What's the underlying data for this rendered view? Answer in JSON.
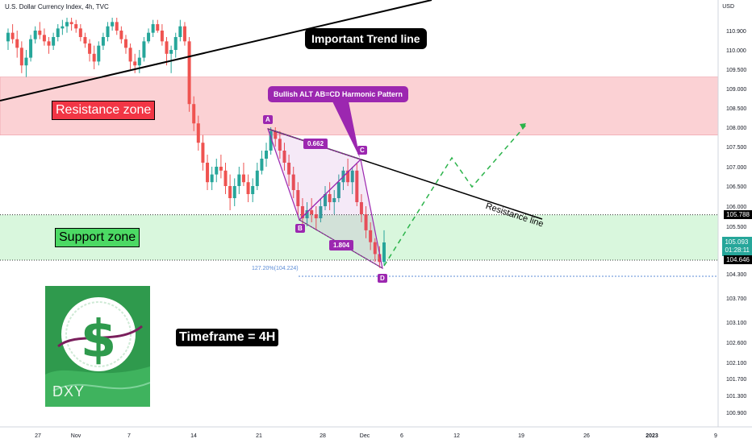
{
  "header": {
    "title": "U.S. Dollar Currency Index, 4h, TVC"
  },
  "price_axis": {
    "currency": "USD",
    "levels": [
      {
        "price": 105.788,
        "label": "105.788",
        "color": "#000000"
      },
      {
        "price": 105.093,
        "label": "105.093",
        "countdown": "01:28:11",
        "color": "#26a69a"
      },
      {
        "price": 104.646,
        "label": "104.646",
        "color": "#000000"
      }
    ]
  },
  "annotations": {
    "resistance_zone": "Resistance zone",
    "support_zone": "Support zone",
    "important_trend_line": "Important Trend line",
    "timeframe": "Timeframe = 4H",
    "pattern_callout": "Bullish ALT AB=CD Harmonic Pattern",
    "resistance_line": "Resistance line",
    "point_a": "A",
    "point_b": "B",
    "point_c": "C",
    "point_d": "D",
    "ratio_bc": "0.662",
    "ratio_cd": "1.804",
    "extension": "127.20%(104.224)"
  },
  "logo": {
    "text": "DXY",
    "icon": "dollar-sign-icon"
  },
  "colors": {
    "resistance_fill": "#fbd1d4",
    "support_fill": "#d9f7dd",
    "up_candle": "#26a69a",
    "down_candle": "#ef5350",
    "pattern": "#9c27b0",
    "projection": "#2bb34a",
    "logo_bg": "#2f9a4d"
  },
  "chart_data": {
    "type": "candlestick",
    "title": "U.S. Dollar Currency Index, 4h, TVC",
    "y_axis": {
      "ticks": [
        110.9,
        110.0,
        109.5,
        109.0,
        108.5,
        108.0,
        107.5,
        107.0,
        106.5,
        106.0,
        105.5,
        104.3,
        103.7,
        103.1,
        102.6,
        102.1,
        101.7,
        101.3,
        100.9
      ],
      "tick_labels": [
        "110.900",
        "110.000",
        "109.500",
        "109.000",
        "108.500",
        "108.000",
        "107.500",
        "107.000",
        "106.500",
        "106.000",
        "105.500",
        "104.300",
        "103.700",
        "103.100",
        "102.600",
        "102.100",
        "101.700",
        "101.300",
        "100.900"
      ],
      "range": [
        100.75,
        111.5
      ]
    },
    "x_axis": {
      "tick_labels": [
        "27",
        "Nov",
        "7",
        "14",
        "21",
        "28",
        "Dec",
        "6",
        "12",
        "19",
        "26",
        "2023",
        "9"
      ]
    },
    "zones": {
      "resistance": [
        107.8,
        109.3
      ],
      "support": [
        104.646,
        105.788
      ]
    },
    "pattern_points": [
      {
        "label": "A",
        "x": "Nov 21",
        "price": 107.95
      },
      {
        "label": "B",
        "x": "Nov 25",
        "price": 105.55
      },
      {
        "label": "C",
        "x": "Nov 30",
        "price": 107.15
      },
      {
        "label": "D",
        "x": "Dec 2",
        "price": 104.45
      }
    ],
    "ohlc": [
      [
        110.4,
        111.0,
        110.0,
        110.8
      ],
      [
        110.8,
        111.2,
        110.3,
        110.5
      ],
      [
        110.5,
        110.9,
        109.8,
        110.1
      ],
      [
        110.1,
        110.4,
        109.4,
        109.6
      ],
      [
        109.6,
        110.0,
        109.3,
        109.8
      ],
      [
        109.8,
        110.7,
        109.7,
        110.5
      ],
      [
        110.5,
        111.1,
        110.3,
        110.9
      ],
      [
        110.9,
        111.3,
        110.5,
        110.7
      ],
      [
        110.7,
        111.0,
        110.2,
        110.4
      ],
      [
        110.4,
        110.6,
        109.9,
        110.2
      ],
      [
        110.2,
        110.8,
        110.0,
        110.6
      ],
      [
        110.6,
        111.2,
        110.4,
        111.0
      ],
      [
        111.0,
        111.4,
        110.7,
        111.1
      ],
      [
        111.1,
        111.5,
        110.8,
        111.3
      ],
      [
        111.3,
        111.5,
        110.9,
        111.2
      ],
      [
        111.2,
        111.4,
        110.8,
        111.0
      ],
      [
        111.0,
        111.2,
        110.4,
        110.6
      ],
      [
        110.6,
        110.8,
        110.1,
        110.3
      ],
      [
        110.3,
        110.5,
        109.7,
        109.9
      ],
      [
        109.9,
        110.2,
        109.5,
        109.7
      ],
      [
        109.7,
        110.4,
        109.6,
        110.2
      ],
      [
        110.2,
        110.8,
        110.0,
        110.6
      ],
      [
        110.6,
        111.3,
        110.4,
        111.1
      ],
      [
        111.1,
        111.5,
        110.9,
        111.3
      ],
      [
        111.3,
        111.5,
        110.7,
        110.9
      ],
      [
        110.9,
        111.1,
        110.3,
        110.5
      ],
      [
        110.5,
        110.7,
        109.9,
        110.1
      ],
      [
        110.1,
        110.3,
        109.5,
        109.7
      ],
      [
        109.7,
        109.9,
        109.4,
        109.6
      ],
      [
        109.6,
        110.0,
        109.4,
        109.8
      ],
      [
        109.8,
        110.6,
        109.7,
        110.4
      ],
      [
        110.4,
        111.0,
        110.3,
        110.8
      ],
      [
        110.8,
        111.4,
        110.6,
        111.2
      ],
      [
        111.2,
        111.4,
        110.8,
        110.9
      ],
      [
        110.9,
        111.2,
        110.2,
        110.4
      ],
      [
        110.4,
        110.6,
        109.6,
        109.9
      ],
      [
        109.9,
        110.2,
        109.4,
        110.0
      ],
      [
        110.0,
        110.8,
        109.8,
        110.6
      ],
      [
        110.6,
        111.4,
        110.4,
        111.1
      ],
      [
        111.1,
        111.3,
        110.2,
        110.4
      ],
      [
        110.4,
        110.6,
        108.4,
        108.6
      ],
      [
        108.6,
        108.8,
        107.9,
        108.1
      ],
      [
        108.1,
        108.3,
        107.4,
        107.6
      ],
      [
        107.6,
        107.8,
        106.9,
        107.1
      ],
      [
        107.1,
        107.3,
        106.4,
        106.6
      ],
      [
        106.6,
        107.0,
        106.4,
        106.8
      ],
      [
        106.8,
        107.2,
        106.6,
        107.0
      ],
      [
        107.0,
        107.3,
        106.7,
        106.9
      ],
      [
        106.9,
        107.1,
        106.3,
        106.5
      ],
      [
        106.5,
        106.8,
        105.9,
        106.2
      ],
      [
        106.2,
        106.7,
        106.0,
        106.5
      ],
      [
        106.5,
        107.0,
        106.3,
        106.8
      ],
      [
        106.8,
        107.1,
        106.5,
        106.6
      ],
      [
        106.6,
        106.8,
        106.1,
        106.3
      ],
      [
        106.3,
        106.7,
        106.1,
        106.5
      ],
      [
        106.5,
        107.1,
        106.4,
        106.9
      ],
      [
        106.9,
        107.4,
        106.8,
        107.2
      ],
      [
        107.2,
        107.6,
        107.0,
        107.4
      ],
      [
        107.4,
        108.0,
        107.3,
        107.9
      ],
      [
        107.9,
        108.0,
        107.5,
        107.7
      ],
      [
        107.7,
        107.9,
        107.2,
        107.4
      ],
      [
        107.4,
        107.6,
        106.9,
        107.1
      ],
      [
        107.1,
        107.3,
        106.5,
        106.8
      ],
      [
        106.8,
        107.0,
        106.2,
        106.4
      ],
      [
        106.4,
        106.6,
        105.8,
        106.0
      ],
      [
        106.0,
        106.2,
        105.5,
        105.7
      ],
      [
        105.7,
        106.1,
        105.5,
        105.9
      ],
      [
        105.9,
        106.2,
        105.6,
        105.8
      ],
      [
        105.8,
        106.0,
        105.4,
        105.7
      ],
      [
        105.7,
        106.2,
        105.6,
        106.0
      ],
      [
        106.0,
        106.5,
        105.9,
        106.3
      ],
      [
        106.3,
        106.6,
        105.9,
        106.1
      ],
      [
        106.1,
        106.4,
        105.8,
        106.2
      ],
      [
        106.2,
        106.8,
        106.1,
        106.6
      ],
      [
        106.6,
        107.0,
        106.4,
        106.9
      ],
      [
        106.9,
        107.2,
        106.5,
        106.6
      ],
      [
        106.6,
        107.0,
        106.3,
        106.9
      ],
      [
        106.9,
        107.1,
        106.0,
        106.1
      ],
      [
        106.1,
        106.3,
        105.6,
        105.8
      ],
      [
        105.8,
        106.0,
        105.2,
        105.4
      ],
      [
        105.4,
        105.6,
        104.9,
        105.1
      ],
      [
        105.1,
        105.2,
        104.6,
        104.8
      ],
      [
        104.8,
        105.0,
        104.45,
        104.6
      ],
      [
        104.6,
        105.4,
        104.5,
        105.093
      ]
    ]
  }
}
